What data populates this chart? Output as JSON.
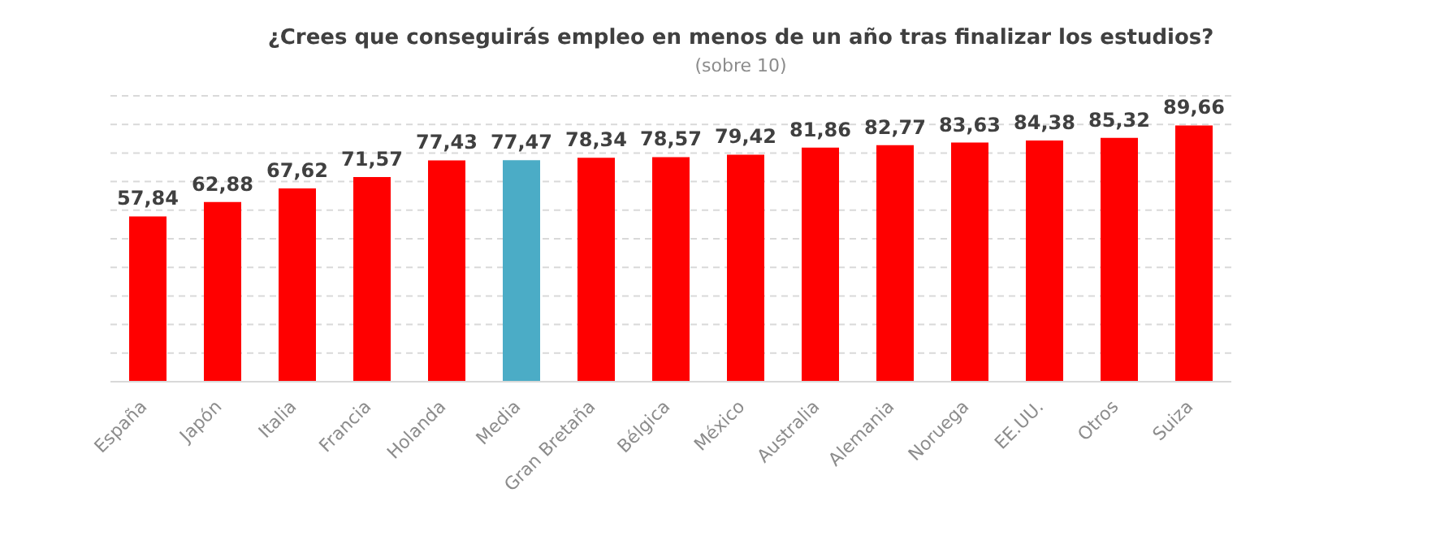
{
  "chart_data": {
    "type": "bar",
    "title": "¿Crees que conseguirás empleo en menos de un año tras finalizar los estudios?",
    "subtitle": "(sobre 10)",
    "categories": [
      "España",
      "Japón",
      "Italia",
      "Francia",
      "Holanda",
      "Media",
      "Gran Bretaña",
      "Bélgica",
      "México",
      "Australia",
      "Alemania",
      "Noruega",
      "EE.UU.",
      "Otros",
      "Suiza"
    ],
    "values": [
      57.84,
      62.88,
      67.62,
      71.57,
      77.43,
      77.47,
      78.34,
      78.57,
      79.42,
      81.86,
      82.77,
      83.63,
      84.38,
      85.32,
      89.66
    ],
    "value_labels": [
      "57,84",
      "62,88",
      "67,62",
      "71,57",
      "77,43",
      "77,47",
      "78,34",
      "78,57",
      "79,42",
      "81,86",
      "82,77",
      "83,63",
      "84,38",
      "85,32",
      "89,66"
    ],
    "colors": [
      "#ff0000",
      "#ff0000",
      "#ff0000",
      "#ff0000",
      "#ff0000",
      "#4bacc6",
      "#ff0000",
      "#ff0000",
      "#ff0000",
      "#ff0000",
      "#ff0000",
      "#ff0000",
      "#ff0000",
      "#ff0000",
      "#ff0000"
    ],
    "ylim": [
      0,
      100
    ],
    "yticks": [
      {
        "value": 0,
        "label": null
      },
      {
        "value": 10,
        "label": null
      },
      {
        "value": 20,
        "label": null
      },
      {
        "value": 30,
        "label": null
      },
      {
        "value": 40,
        "label": null
      },
      {
        "value": 50,
        "label": null
      },
      {
        "value": 60,
        "label": null
      },
      {
        "value": 70,
        "label": null
      },
      {
        "value": 80,
        "label": null
      },
      {
        "value": 90,
        "label": null
      },
      {
        "value": 100,
        "label": null
      }
    ],
    "grid": "y",
    "tick_labels": "x"
  }
}
